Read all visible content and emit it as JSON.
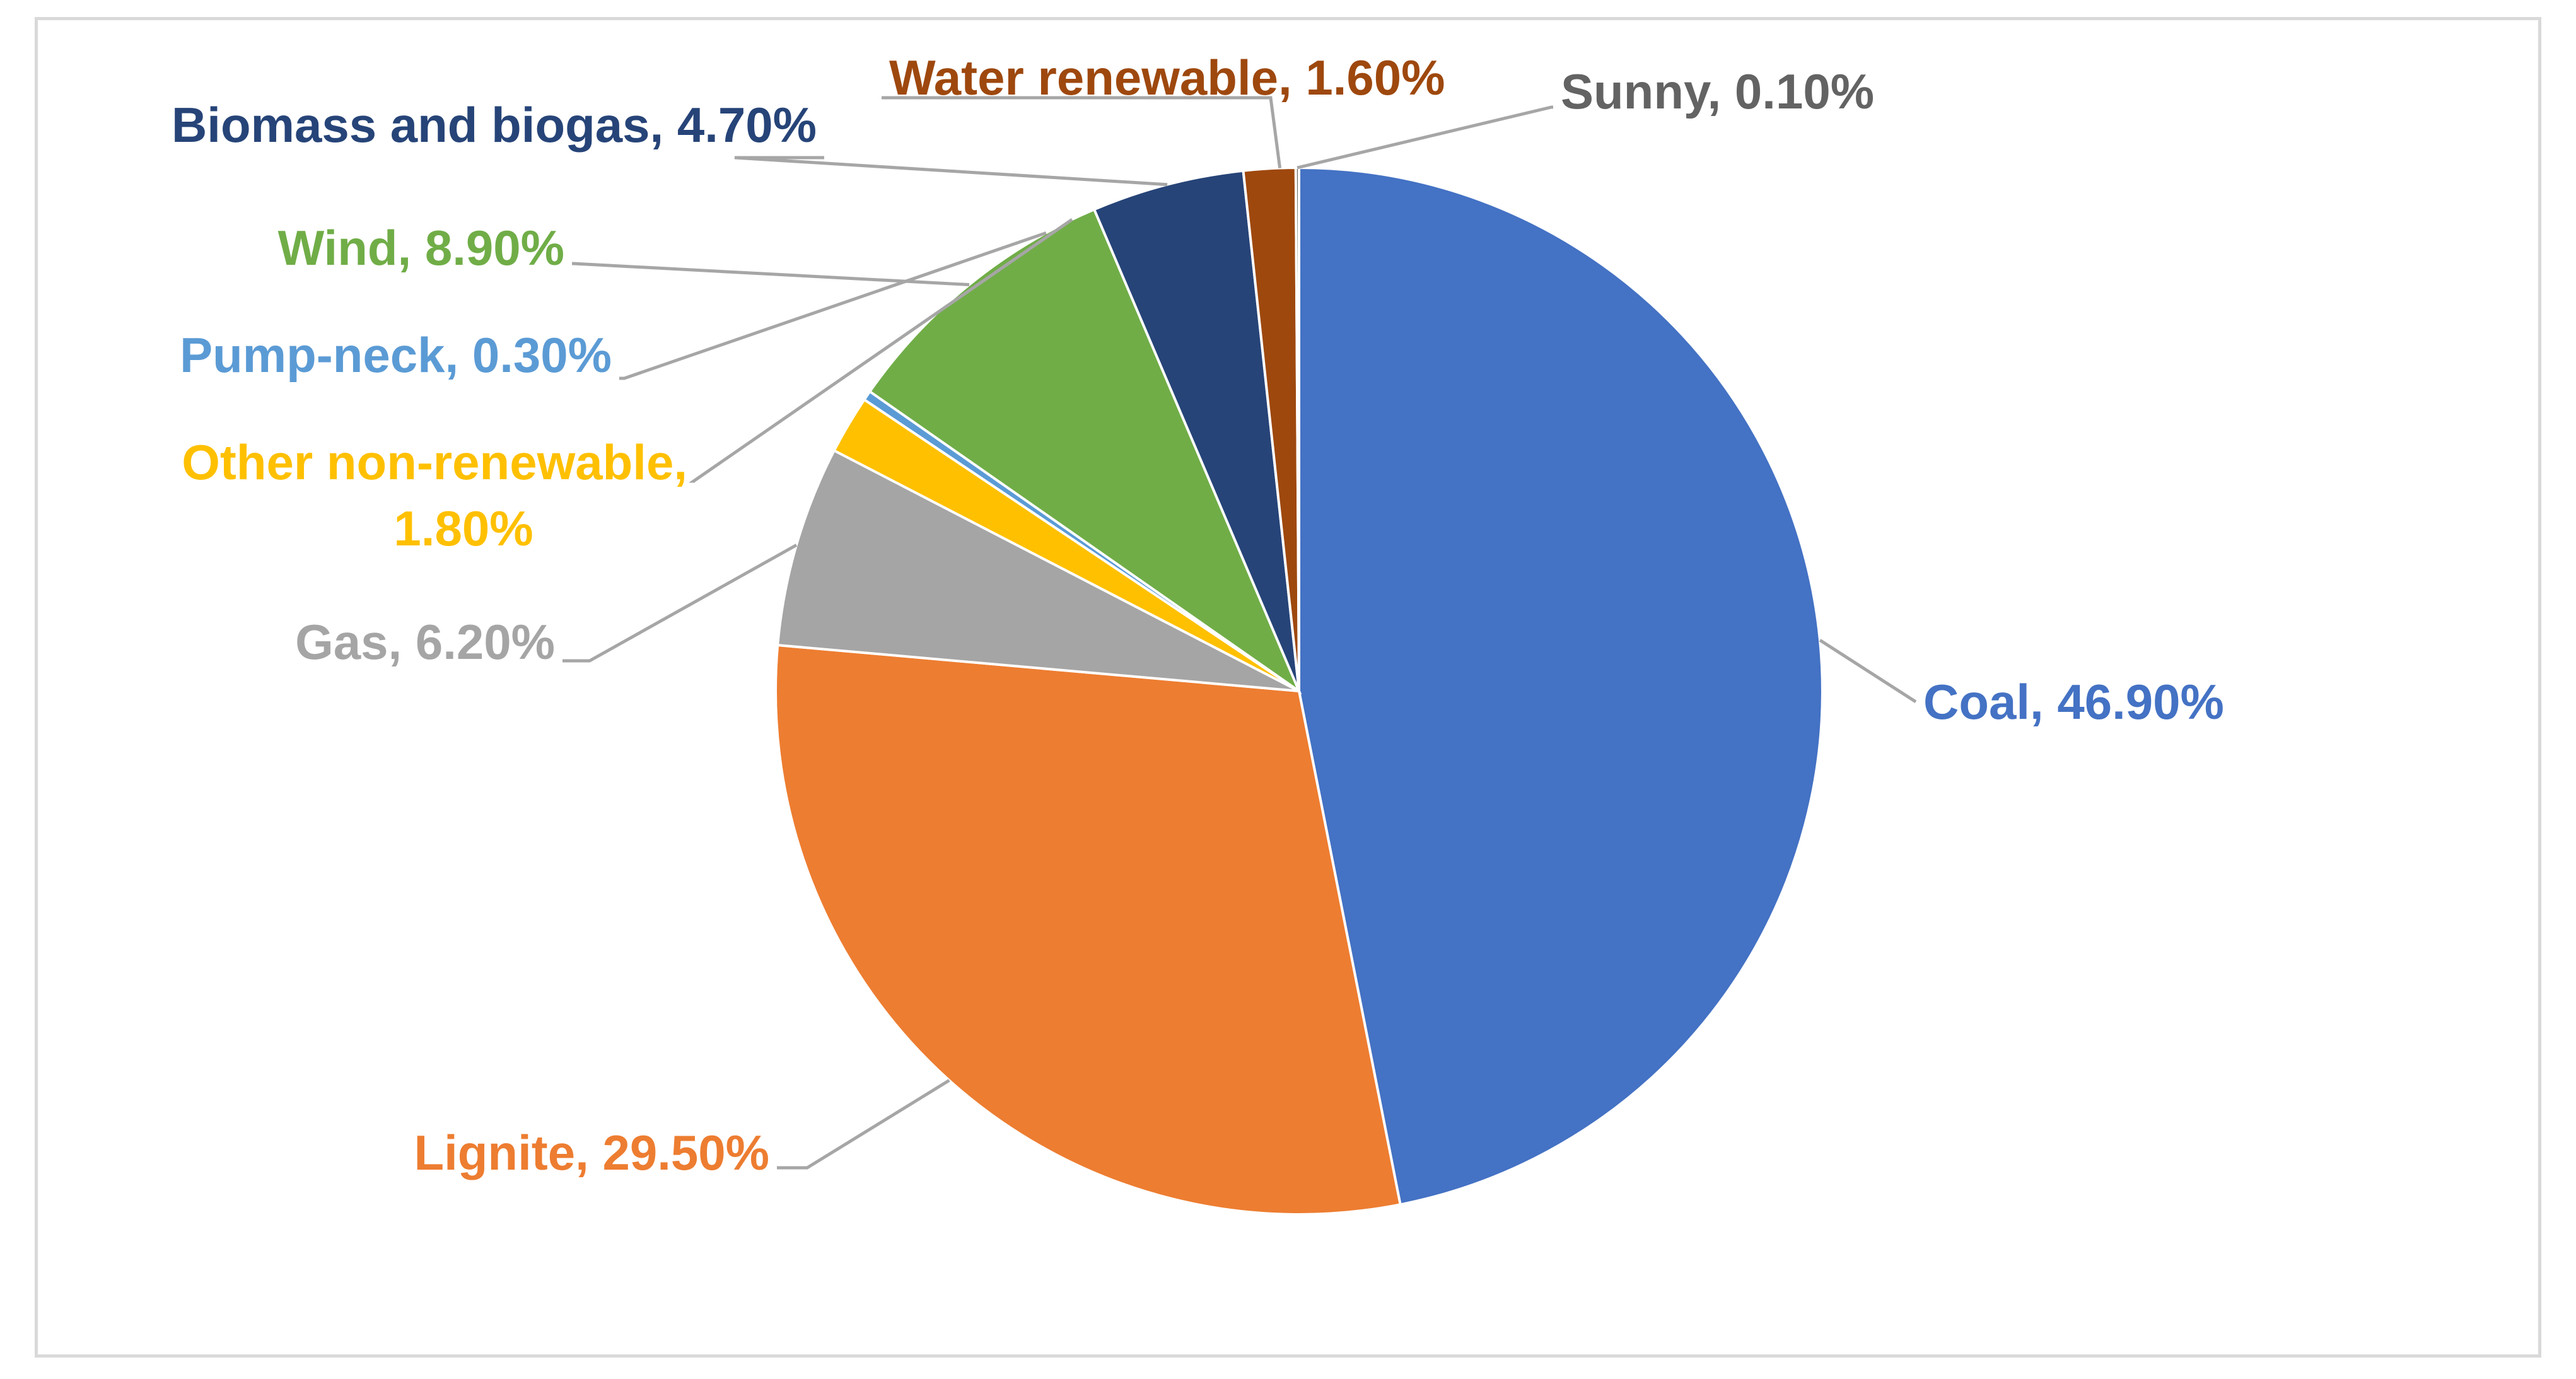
{
  "chart_data": {
    "type": "pie",
    "start_angle_deg": 0,
    "direction": "clockwise",
    "slices": [
      {
        "name": "Coal",
        "value": 46.9,
        "label": "Coal, 46.90%",
        "color": "#4472c4",
        "label_color": "#4472c4"
      },
      {
        "name": "Lignite",
        "value": 29.5,
        "label": "Lignite, 29.50%",
        "color": "#ed7d31",
        "label_color": "#ed7d31"
      },
      {
        "name": "Gas",
        "value": 6.2,
        "label": "Gas, 6.20%",
        "color": "#a5a5a5",
        "label_color": "#a5a5a5"
      },
      {
        "name": "Other non-renewable",
        "value": 1.8,
        "label": "Other non-renewable,",
        "label2": "1.80%",
        "color": "#ffc000",
        "label_color": "#ffc000"
      },
      {
        "name": "Pump-neck",
        "value": 0.3,
        "label": "Pump-neck, 0.30%",
        "color": "#5b9bd5",
        "label_color": "#5b9bd5"
      },
      {
        "name": "Wind",
        "value": 8.9,
        "label": "Wind, 8.90%",
        "color": "#70ad47",
        "label_color": "#70ad47"
      },
      {
        "name": "Biomass and biogas",
        "value": 4.7,
        "label": "Biomass and biogas, 4.70%",
        "color": "#264478",
        "label_color": "#264478"
      },
      {
        "name": "Water renewable",
        "value": 1.6,
        "label": "Water renewable, 1.60%",
        "color": "#9e480e",
        "label_color": "#9e480e"
      },
      {
        "name": "Sunny",
        "value": 0.1,
        "label": "Sunny, 0.10%",
        "color": "#636363",
        "label_color": "#636363"
      }
    ]
  }
}
